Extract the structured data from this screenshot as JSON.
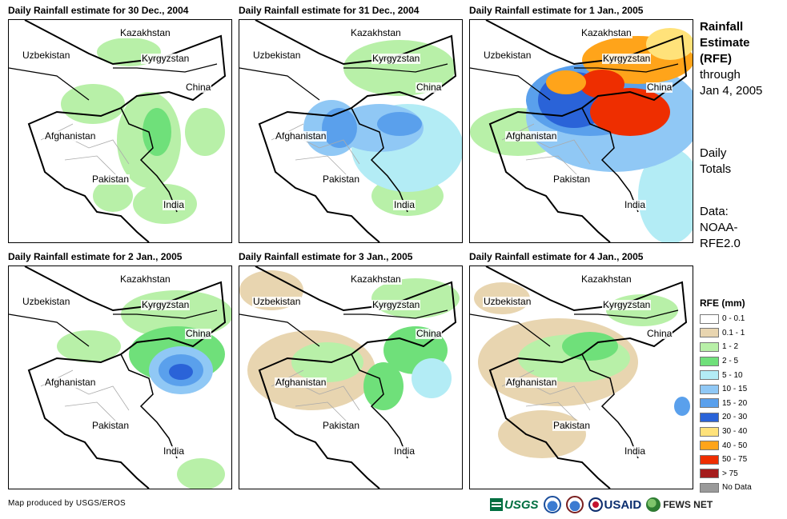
{
  "panels": [
    {
      "title": "Daily Rainfall estimate for 30 Dec., 2004"
    },
    {
      "title": "Daily Rainfall estimate for 31 Dec., 2004"
    },
    {
      "title": "Daily Rainfall estimate for 1 Jan., 2005"
    },
    {
      "title": "Daily Rainfall estimate for 2 Jan., 2005"
    },
    {
      "title": "Daily Rainfall estimate for 3 Jan., 2005"
    },
    {
      "title": "Daily Rainfall estimate for 4 Jan., 2005"
    }
  ],
  "map_labels": {
    "kazakhstan": "Kazakhstan",
    "uzbekistan": "Uzbekistan",
    "kyrgyzstan": "Kyrgyzstan",
    "china": "China",
    "afghanistan": "Afghanistan",
    "pakistan": "Pakistan",
    "india": "India"
  },
  "side": {
    "title_line1": "Rainfall",
    "title_line2": "Estimate",
    "title_line3": "(RFE)",
    "title_line4": "through",
    "title_line5": "Jan 4, 2005",
    "daily_line1": "Daily",
    "daily_line2": "Totals",
    "data_line1": "Data:",
    "data_line2": "NOAA-",
    "data_line3": "RFE2.0"
  },
  "legend": {
    "title": "RFE (mm)",
    "items": [
      {
        "label": "0 - 0.1",
        "color": "#ffffff"
      },
      {
        "label": "0.1 - 1",
        "color": "#e8d5b0"
      },
      {
        "label": "1 - 2",
        "color": "#b8f0a8"
      },
      {
        "label": "2 - 5",
        "color": "#6fe07a"
      },
      {
        "label": "5 - 10",
        "color": "#b3ecf5"
      },
      {
        "label": "10 - 15",
        "color": "#90c8f5"
      },
      {
        "label": "15 - 20",
        "color": "#5aa0ec"
      },
      {
        "label": "20 - 30",
        "color": "#2a63d8"
      },
      {
        "label": "30 - 40",
        "color": "#ffe27a"
      },
      {
        "label": "40 - 50",
        "color": "#ffa41a"
      },
      {
        "label": "50 - 75",
        "color": "#ee2e00"
      },
      {
        "label": "> 75",
        "color": "#a51c1c"
      },
      {
        "label": "No Data",
        "color": "#9a9a9a"
      }
    ]
  },
  "footer": {
    "credit": "Map produced by USGS/EROS",
    "logo_usgs": "USGS",
    "logo_usaid": "USAID",
    "logo_fews": "FEWS NET"
  }
}
